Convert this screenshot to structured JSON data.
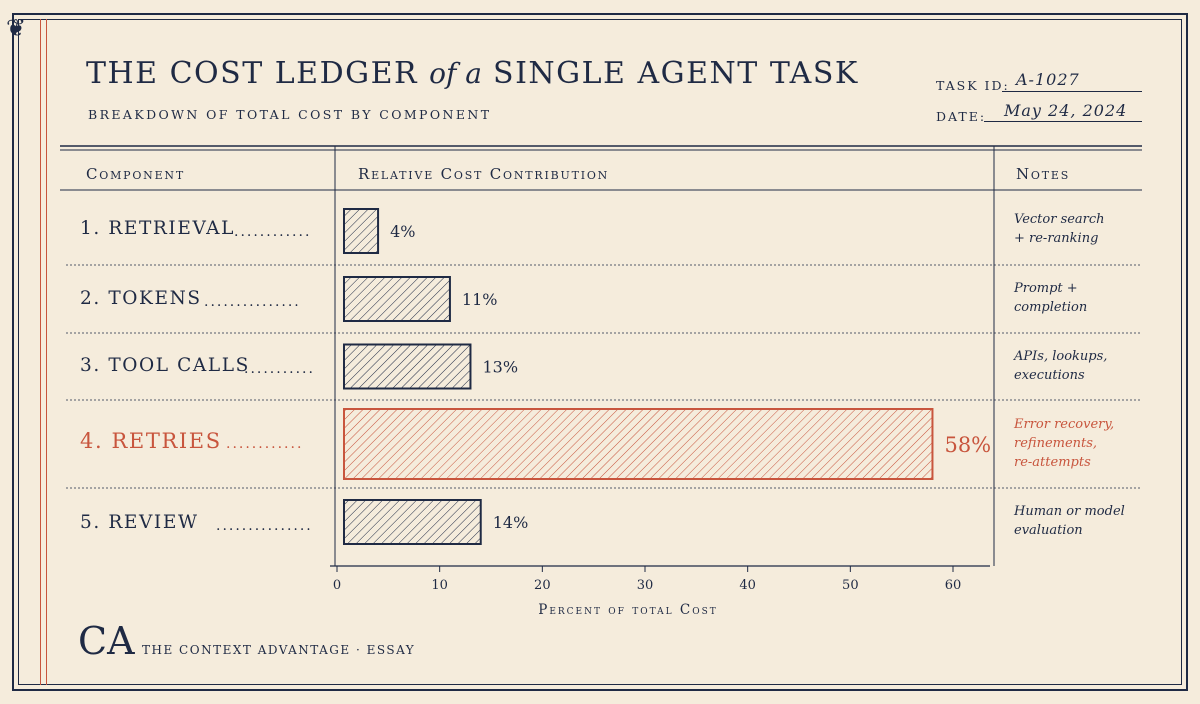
{
  "header": {
    "title_part1": "THE COST LEDGER",
    "title_ofa": "of a",
    "title_part2": "SINGLE AGENT TASK",
    "subtitle": "BREAKDOWN OF TOTAL COST BY COMPONENT",
    "task_id_label": "TASK ID:",
    "task_id_value": "A-1027",
    "date_label": "DATE:",
    "date_value": "May 24, 2024"
  },
  "table": {
    "col_component": "Component",
    "col_contribution": "Relative Cost Contribution",
    "col_notes": "Notes"
  },
  "rows": [
    {
      "label": "1.  RETRIEVAL",
      "dots": "............",
      "note": "Vector search\n+ re-ranking"
    },
    {
      "label": "2.  TOKENS",
      "dots": "...............",
      "note": "Prompt +\ncompletion"
    },
    {
      "label": "3.  TOOL CALLS",
      "dots": "...........",
      "note": "APIs, lookups,\nexecutions"
    },
    {
      "label": "4.  RETRIES",
      "dots": "............",
      "note": "Error recovery,\nrefinements,\nre-attempts"
    },
    {
      "label": "5.  REVIEW",
      "dots": "...............",
      "note": "Human or model\nevaluation"
    }
  ],
  "chart_data": {
    "type": "bar",
    "orientation": "horizontal",
    "categories": [
      "RETRIEVAL",
      "TOKENS",
      "TOOL CALLS",
      "RETRIES",
      "REVIEW"
    ],
    "values": [
      4,
      11,
      13,
      58,
      14
    ],
    "value_labels": [
      "4%",
      "11%",
      "13%",
      "58%",
      "14%"
    ],
    "highlight_index": 3,
    "xlabel": "Percent of total Cost",
    "xlim": [
      0,
      64
    ],
    "xticks": [
      0,
      10,
      20,
      30,
      40,
      50,
      60
    ],
    "colors": {
      "default": "#1f2a44",
      "highlight": "#c8553d"
    }
  },
  "footer": {
    "logo": "CA",
    "text": "THE CONTEXT ADVANTAGE · ESSAY"
  },
  "colors": {
    "ink": "#1f2a44",
    "accent": "#c8553d",
    "paper": "#f5ecdc"
  }
}
